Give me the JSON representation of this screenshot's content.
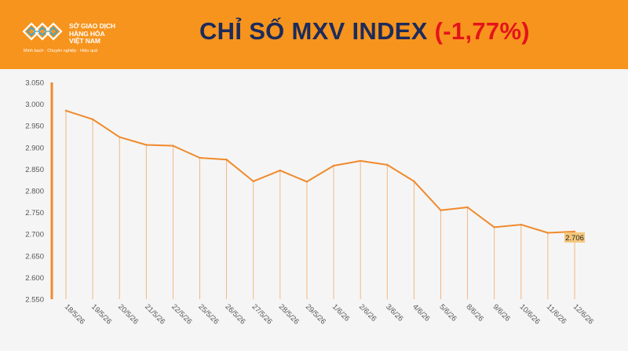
{
  "header": {
    "logo_lines": [
      "SỞ GIAO DỊCH",
      "HÀNG HÓA",
      "VIỆT NAM"
    ],
    "logo_tagline": "Minh bạch · Chuyên nghiệp · Hiệu quả",
    "title_main": "CHỈ SỐ MXV INDEX",
    "title_change": "(-1,77%)"
  },
  "colors": {
    "banner": "#f7941d",
    "title": "#1c2b5a",
    "change": "#e3141b",
    "line": "#f08a2c",
    "label_bg": "#f4c77b"
  },
  "chart_data": {
    "type": "line",
    "title": "CHỈ SỐ MXV INDEX (-1,77%)",
    "xlabel": "",
    "ylabel": "",
    "ylim": [
      2550,
      3050
    ],
    "yticks": [
      "2.550",
      "2.600",
      "2.650",
      "2.700",
      "2.750",
      "2.800",
      "2.850",
      "2.900",
      "2.950",
      "3.000",
      "3.050"
    ],
    "categories": [
      "18/5/26",
      "19/5/26",
      "20/5/26",
      "21/5/26",
      "22/5/26",
      "25/5/26",
      "26/5/26",
      "27/5/26",
      "28/5/26",
      "29/5/26",
      "1/6/26",
      "2/6/26",
      "3/6/26",
      "4/6/26",
      "5/6/26",
      "8/6/26",
      "9/6/26",
      "10/6/26",
      "11/6/26",
      "12/6/26"
    ],
    "series": [
      {
        "values": [
          2985,
          2965,
          2924,
          2906,
          2904,
          2876,
          2872,
          2822,
          2847,
          2821,
          2858,
          2869,
          2860,
          2822,
          2755,
          2762,
          2716,
          2722,
          2703,
          2706
        ]
      }
    ],
    "last_value_label": "2.706",
    "grid": "vertical drop lines",
    "legend": "none"
  }
}
